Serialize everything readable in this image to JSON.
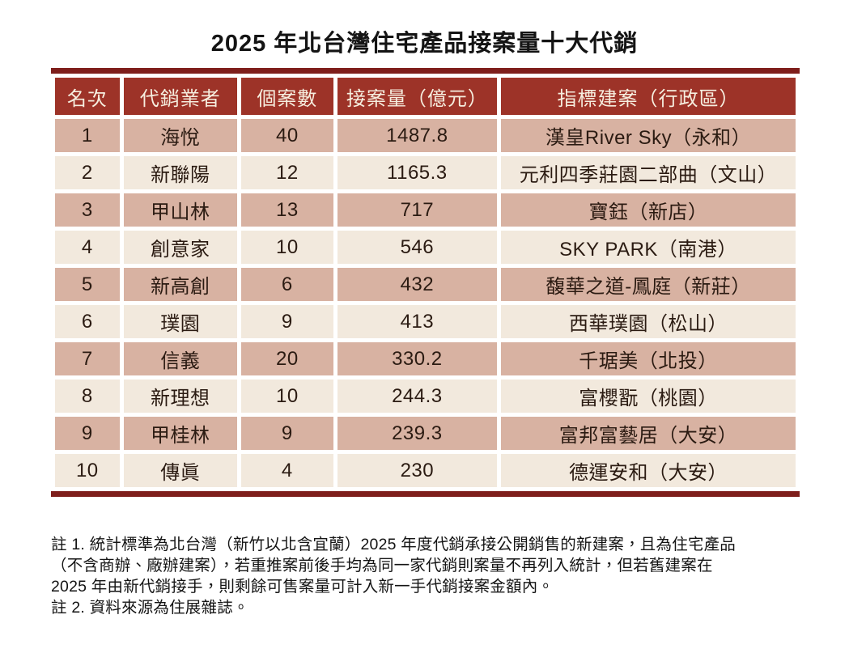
{
  "title": "2025 年北台灣住宅產品接案量十大代銷",
  "chart_data": {
    "type": "table",
    "title": "2025 年北台灣住宅產品接案量十大代銷",
    "columns": [
      "名次",
      "代銷業者",
      "個案數",
      "接案量（億元）",
      "指標建案（行政區）"
    ],
    "rows": [
      [
        "1",
        "海悅",
        "40",
        "1487.8",
        "漢皇River Sky（永和）"
      ],
      [
        "2",
        "新聯陽",
        "12",
        "1165.3",
        "元利四季莊園二部曲（文山）"
      ],
      [
        "3",
        "甲山林",
        "13",
        "717",
        "寶鈺（新店）"
      ],
      [
        "4",
        "創意家",
        "10",
        "546",
        "SKY PARK（南港）"
      ],
      [
        "5",
        "新高創",
        "6",
        "432",
        "馥華之道-鳳庭（新莊）"
      ],
      [
        "6",
        "璞園",
        "9",
        "413",
        "西華璞園（松山）"
      ],
      [
        "7",
        "信義",
        "20",
        "330.2",
        "千琚美（北投）"
      ],
      [
        "8",
        "新理想",
        "10",
        "244.3",
        "富櫻翫（桃園）"
      ],
      [
        "9",
        "甲桂林",
        "9",
        "239.3",
        "富邦富藝居（大安）"
      ],
      [
        "10",
        "傳眞",
        "4",
        "230",
        "德運安和（大安）"
      ]
    ]
  },
  "notes": {
    "lines": [
      "註 1. 統計標準為北台灣（新竹以北含宜蘭）2025 年度代銷承接公開銷售的新建案，且為住宅產品",
      "（不含商辦、廠辦建案），若重推案前後手均為同一家代銷則案量不再列入統計，但若舊建案在",
      "2025 年由新代銷接手，則剩餘可售案量可計入新一手代銷接案金額內。",
      "註 2. 資料來源為住展雜誌。"
    ]
  },
  "colors": {
    "header_bg": "#9D3328",
    "header_text": "#F6EEDF",
    "border_dark": "#7E1E1B",
    "row_pink": "#D8B2A2",
    "row_cream": "#F2E9DD",
    "body_text": "#2B1B12",
    "page_bg": "#FFFFFF"
  }
}
